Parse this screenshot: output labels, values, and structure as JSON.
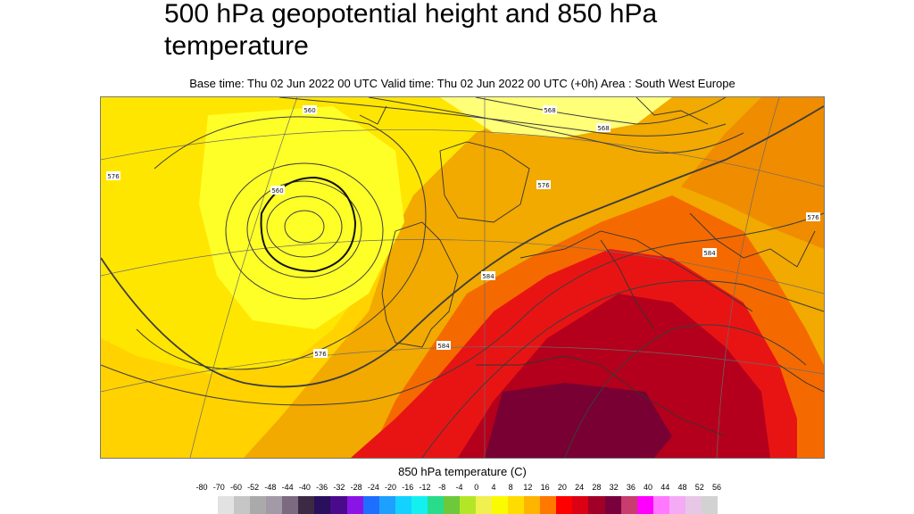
{
  "title": "500 hPa geopotential height and 850 hPa temperature",
  "subtitle": "Base time: Thu 02 Jun 2022 00 UTC Valid time: Thu 02 Jun 2022 00 UTC (+0h) Area : South West Europe",
  "map": {
    "contour_labels": [
      "560",
      "568",
      "576",
      "584",
      "576",
      "576",
      "584",
      "576",
      "560",
      "568",
      "584"
    ]
  },
  "colorbar": {
    "title": "850 hPa temperature (C)",
    "ticks": [
      "-80",
      "-70",
      "-60",
      "-52",
      "-48",
      "-44",
      "-40",
      "-36",
      "-32",
      "-28",
      "-24",
      "-20",
      "-16",
      "-12",
      "-8",
      "-4",
      "0",
      "4",
      "8",
      "12",
      "16",
      "20",
      "24",
      "28",
      "32",
      "36",
      "40",
      "44",
      "48",
      "52",
      "56"
    ],
    "colors": [
      "#e2e2e2",
      "#c6c6c6",
      "#aaaaaa",
      "#a39aa8",
      "#7c6b80",
      "#3c2a45",
      "#2a0f5c",
      "#4b0a8c",
      "#8a14e6",
      "#1e6eff",
      "#1ea0ff",
      "#14d2ff",
      "#14f0f0",
      "#28dc8c",
      "#6ec83c",
      "#b4e628",
      "#f0f050",
      "#fafa00",
      "#ffdc00",
      "#ffb400",
      "#ff7800",
      "#ff0000",
      "#dc0014",
      "#a00028",
      "#78003c",
      "#c83c6e",
      "#ff00ff",
      "#ff78ff",
      "#f5aaf5",
      "#e6c8e6",
      "#d2d2d2"
    ]
  }
}
